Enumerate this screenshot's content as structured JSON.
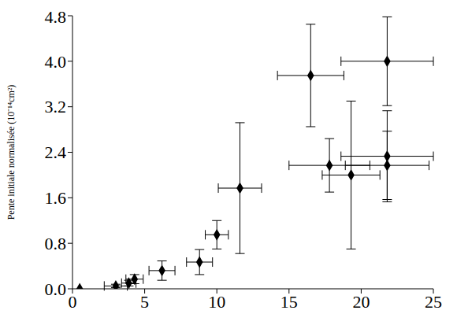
{
  "chart_data": {
    "type": "scatter",
    "y_label": "Pente initiale normalisée (10⁻¹⁴cm²)",
    "x": [
      0.5,
      3.0,
      3.9,
      4.3,
      6.2,
      8.8,
      10.0,
      11.6,
      16.5,
      17.8,
      19.3,
      21.8,
      21.8,
      21.8
    ],
    "values": [
      0.0,
      0.05,
      0.1,
      0.17,
      0.32,
      0.47,
      0.95,
      1.77,
      3.75,
      2.17,
      2.0,
      4.0,
      2.33,
      2.17
    ],
    "x_error": [
      0,
      0.8,
      0.5,
      0.6,
      0.9,
      0.9,
      0.8,
      1.5,
      2.3,
      2.8,
      2.0,
      3.2,
      3.2,
      2.9
    ],
    "y_error": [
      0,
      0.03,
      0.05,
      0.08,
      0.17,
      0.22,
      0.25,
      1.15,
      0.9,
      0.47,
      1.3,
      0.78,
      0.8,
      0.6
    ],
    "color": "#000000",
    "marker": "diamond",
    "xlim": [
      0,
      25
    ],
    "xticks": [
      0,
      5,
      10,
      15,
      20,
      25
    ],
    "ylim": [
      0,
      4.8
    ],
    "yticks": [
      {
        "value": 0,
        "label": "0.0"
      },
      0.8,
      1.6,
      2.4,
      3.2,
      {
        "value": 4,
        "label": "4.0"
      },
      4.8
    ],
    "grid": false
  }
}
